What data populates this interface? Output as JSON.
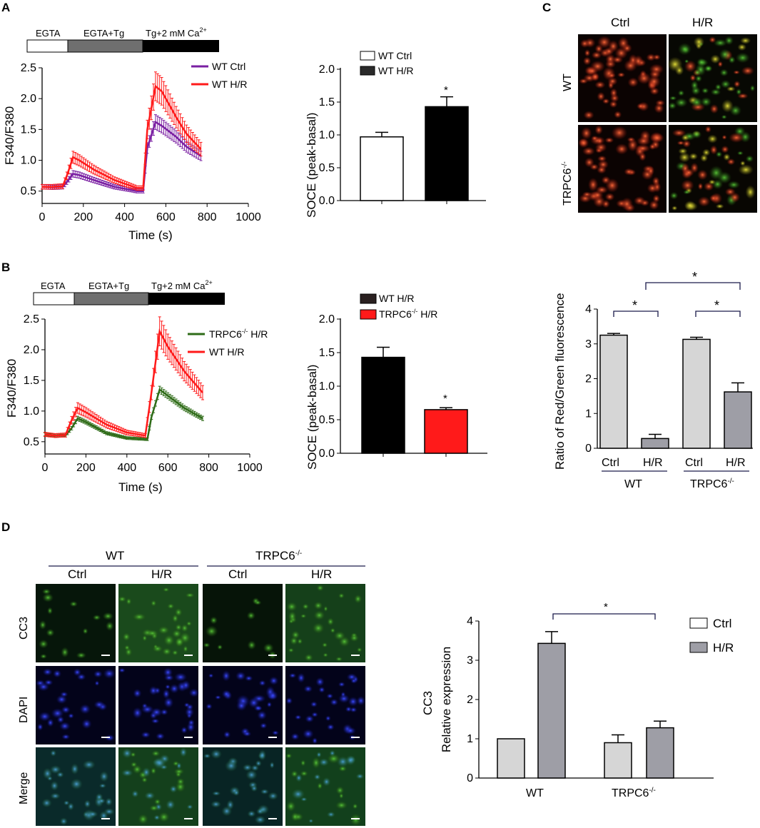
{
  "panels": {
    "a": "A",
    "b": "B",
    "c": "C",
    "d": "D"
  },
  "colors": {
    "wt_ctrl_trace": "#7a1fa2",
    "wt_hr_trace": "#ff1a1a",
    "trpc6_hr_trace": "#2e6b17",
    "bar_black": "#000000",
    "bar_red": "#ff1a1a",
    "bar_light_gray": "#d6d6d6",
    "bar_dark_gray": "#9e9ea6",
    "underline_navy": "#1a1a4a"
  },
  "panel_a": {
    "protocol": {
      "seg1": "EGTA",
      "seg2": "EGTA+Tg",
      "seg3_prefix": "Tg+2 mM Ca",
      "seg3_sup": "2+"
    },
    "trace": {
      "ylabel": "F340/F380",
      "xlabel": "Time (s)",
      "x_ticks": [
        "0",
        "200",
        "400",
        "600",
        "800",
        "1000"
      ],
      "y_ticks": [
        "0.5",
        "1.0",
        "1.5",
        "2.0",
        "2.5"
      ],
      "legend": [
        "WT Ctrl",
        "WT H/R"
      ]
    },
    "bar": {
      "ylabel": "SOCE (peak-basal)",
      "y_ticks": [
        "0.0",
        "0.5",
        "1.0",
        "1.5",
        "2.0"
      ],
      "legend": [
        "WT Ctrl",
        "WT H/R"
      ],
      "star": "*"
    }
  },
  "panel_b": {
    "protocol": {
      "seg1": "EGTA",
      "seg2": "EGTA+Tg",
      "seg3_prefix": "Tg+2 mM Ca",
      "seg3_sup": "2+"
    },
    "trace": {
      "ylabel": "F340/F380",
      "xlabel": "Time (s)",
      "x_ticks": [
        "0",
        "200",
        "400",
        "600",
        "800",
        "1000"
      ],
      "y_ticks": [
        "0.5",
        "1.0",
        "1.5",
        "2.0",
        "2.5"
      ],
      "legend_1_prefix": "TRPC6",
      "legend_1_sup": "-/-",
      "legend_1_suffix": " H/R",
      "legend_2": "WT H/R"
    },
    "bar": {
      "ylabel": "SOCE (peak-basal)",
      "y_ticks": [
        "0.0",
        "0.5",
        "1.0",
        "1.5",
        "2.0"
      ],
      "legend_1": "WT H/R",
      "legend_2_prefix": "TRPC6",
      "legend_2_sup": "-/-",
      "legend_2_suffix": " H/R",
      "star": "*"
    }
  },
  "panel_c": {
    "col_ctrl": "Ctrl",
    "col_hr": "H/R",
    "row_wt": "WT",
    "row_trpc6_prefix": "TRPC6",
    "row_trpc6_sup": "-/-",
    "bar": {
      "ylabel": "Ratio of Red/Green fluorescence",
      "y_ticks": [
        "0",
        "1",
        "2",
        "3",
        "4"
      ],
      "x_labels": [
        "Ctrl",
        "H/R",
        "Ctrl",
        "H/R"
      ],
      "group_wt": "WT",
      "group_trpc6_prefix": "TRPC6",
      "group_trpc6_sup": "-/-",
      "star": "*"
    }
  },
  "panel_d": {
    "group_wt": "WT",
    "group_trpc6_prefix": "TRPC6",
    "group_trpc6_sup": "-/-",
    "cols": [
      "Ctrl",
      "H/R",
      "Ctrl",
      "H/R"
    ],
    "rows": [
      "CC3",
      "DAPI",
      "Merge"
    ],
    "bar": {
      "ylabel_line1": "CC3",
      "ylabel_line2": "Relative expression",
      "y_ticks": [
        "0",
        "1",
        "2",
        "3",
        "4"
      ],
      "x_label_wt": "WT",
      "x_label_trpc6_prefix": "TRPC6",
      "x_label_trpc6_sup": "-/-",
      "legend": [
        "Ctrl",
        "H/R"
      ],
      "star": "*"
    }
  },
  "chart_data": [
    {
      "type": "line",
      "panel": "A-left",
      "xlabel": "Time (s)",
      "ylabel": "F340/F380",
      "xlim": [
        0,
        1000
      ],
      "ylim": [
        0.3,
        2.5
      ],
      "series": [
        {
          "name": "WT Ctrl",
          "points": [
            [
              0,
              0.57
            ],
            [
              50,
              0.56
            ],
            [
              100,
              0.57
            ],
            [
              120,
              0.65
            ],
            [
              150,
              0.78
            ],
            [
              180,
              0.76
            ],
            [
              250,
              0.68
            ],
            [
              350,
              0.57
            ],
            [
              460,
              0.5
            ],
            [
              490,
              0.5
            ],
            [
              510,
              1.2
            ],
            [
              550,
              1.62
            ],
            [
              580,
              1.56
            ],
            [
              650,
              1.38
            ],
            [
              700,
              1.22
            ],
            [
              770,
              1.07
            ]
          ]
        },
        {
          "name": "WT H/R",
          "points": [
            [
              0,
              0.57
            ],
            [
              50,
              0.57
            ],
            [
              100,
              0.58
            ],
            [
              120,
              0.75
            ],
            [
              150,
              1.05
            ],
            [
              180,
              1.0
            ],
            [
              250,
              0.85
            ],
            [
              350,
              0.68
            ],
            [
              460,
              0.55
            ],
            [
              490,
              0.55
            ],
            [
              510,
              1.5
            ],
            [
              550,
              2.2
            ],
            [
              580,
              2.12
            ],
            [
              650,
              1.7
            ],
            [
              700,
              1.43
            ],
            [
              770,
              1.18
            ]
          ]
        }
      ]
    },
    {
      "type": "bar",
      "panel": "A-right",
      "ylabel": "SOCE (peak-basal)",
      "ylim": [
        0,
        2.0
      ],
      "categories": [
        "WT Ctrl",
        "WT H/R"
      ],
      "values": [
        0.97,
        1.43
      ],
      "errors": [
        0.07,
        0.15
      ]
    },
    {
      "type": "line",
      "panel": "B-left",
      "xlabel": "Time (s)",
      "ylabel": "F340/F380",
      "xlim": [
        0,
        1000
      ],
      "ylim": [
        0.3,
        2.5
      ],
      "series": [
        {
          "name": "TRPC6-/- H/R",
          "points": [
            [
              0,
              0.62
            ],
            [
              50,
              0.6
            ],
            [
              100,
              0.6
            ],
            [
              130,
              0.72
            ],
            [
              160,
              0.88
            ],
            [
              200,
              0.82
            ],
            [
              300,
              0.64
            ],
            [
              400,
              0.56
            ],
            [
              500,
              0.54
            ],
            [
              520,
              0.9
            ],
            [
              560,
              1.35
            ],
            [
              600,
              1.25
            ],
            [
              680,
              1.05
            ],
            [
              770,
              0.88
            ]
          ]
        },
        {
          "name": "WT H/R",
          "points": [
            [
              0,
              0.62
            ],
            [
              50,
              0.6
            ],
            [
              100,
              0.61
            ],
            [
              130,
              0.85
            ],
            [
              160,
              1.05
            ],
            [
              200,
              0.98
            ],
            [
              300,
              0.78
            ],
            [
              400,
              0.65
            ],
            [
              490,
              0.6
            ],
            [
              520,
              1.3
            ],
            [
              560,
              2.3
            ],
            [
              600,
              2.05
            ],
            [
              680,
              1.65
            ],
            [
              770,
              1.3
            ]
          ]
        }
      ]
    },
    {
      "type": "bar",
      "panel": "B-right",
      "ylabel": "SOCE (peak-basal)",
      "ylim": [
        0,
        2.0
      ],
      "categories": [
        "WT H/R",
        "TRPC6-/- H/R"
      ],
      "values": [
        1.43,
        0.65
      ],
      "errors": [
        0.15,
        0.03
      ]
    },
    {
      "type": "bar",
      "panel": "C",
      "ylabel": "Ratio of Red/Green fluorescence",
      "ylim": [
        0,
        4
      ],
      "categories": [
        "WT Ctrl",
        "WT H/R",
        "TRPC6-/- Ctrl",
        "TRPC6-/- H/R"
      ],
      "values": [
        3.25,
        0.28,
        3.13,
        1.62
      ],
      "errors": [
        0.05,
        0.12,
        0.06,
        0.26
      ]
    },
    {
      "type": "bar",
      "panel": "D",
      "ylabel": "CC3 Relative expression",
      "ylim": [
        0,
        4
      ],
      "categories": [
        "WT",
        "TRPC6-/-"
      ],
      "series": [
        {
          "name": "Ctrl",
          "values": [
            1.0,
            0.9
          ],
          "errors": [
            0,
            0.2
          ]
        },
        {
          "name": "H/R",
          "values": [
            3.43,
            1.28
          ],
          "errors": [
            0.3,
            0.17
          ]
        }
      ]
    }
  ]
}
